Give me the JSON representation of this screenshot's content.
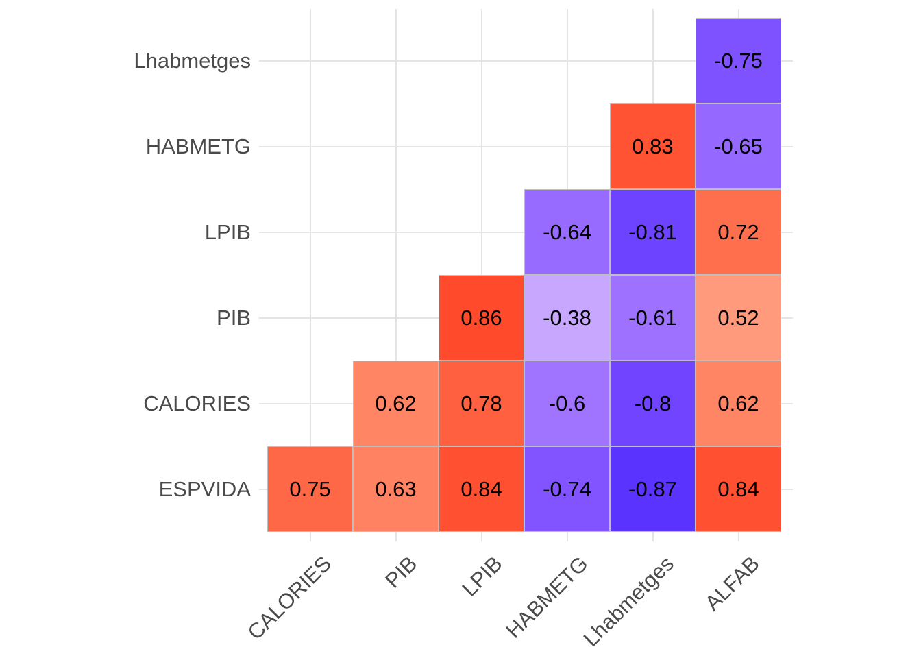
{
  "figure": {
    "background_color": "#FFFFFF",
    "title": "",
    "legend": "none"
  },
  "chart_data": {
    "type": "heatmap",
    "subtype": "correlation-matrix-lower-triangle-no-diagonal",
    "title": "",
    "xlabel": "",
    "ylabel": "",
    "x_categories": [
      "CALORIES",
      "PIB",
      "LPIB",
      "HABMETG",
      "Lhabmetges",
      "ALFAB"
    ],
    "y_categories_top_to_bottom": [
      "Lhabmetges",
      "HABMETG",
      "LPIB",
      "PIB",
      "CALORIES",
      "ESPVIDA"
    ],
    "x_tick_angle_degrees": 45,
    "rows": [
      {
        "y": "Lhabmetges",
        "cells": [
          {
            "x": "ALFAB",
            "value": -0.75,
            "label": "-0.75"
          }
        ]
      },
      {
        "y": "HABMETG",
        "cells": [
          {
            "x": "Lhabmetges",
            "value": 0.83,
            "label": "0.83"
          },
          {
            "x": "ALFAB",
            "value": -0.65,
            "label": "-0.65"
          }
        ]
      },
      {
        "y": "LPIB",
        "cells": [
          {
            "x": "HABMETG",
            "value": -0.64,
            "label": "-0.64"
          },
          {
            "x": "Lhabmetges",
            "value": -0.81,
            "label": "-0.81"
          },
          {
            "x": "ALFAB",
            "value": 0.72,
            "label": "0.72"
          }
        ]
      },
      {
        "y": "PIB",
        "cells": [
          {
            "x": "LPIB",
            "value": 0.86,
            "label": "0.86"
          },
          {
            "x": "HABMETG",
            "value": -0.38,
            "label": "-0.38"
          },
          {
            "x": "Lhabmetges",
            "value": -0.61,
            "label": "-0.61"
          },
          {
            "x": "ALFAB",
            "value": 0.52,
            "label": "0.52"
          }
        ]
      },
      {
        "y": "CALORIES",
        "cells": [
          {
            "x": "PIB",
            "value": 0.62,
            "label": "0.62"
          },
          {
            "x": "LPIB",
            "value": 0.78,
            "label": "0.78"
          },
          {
            "x": "HABMETG",
            "value": -0.6,
            "label": "-0.6"
          },
          {
            "x": "Lhabmetges",
            "value": -0.8,
            "label": "-0.8"
          },
          {
            "x": "ALFAB",
            "value": 0.62,
            "label": "0.62"
          }
        ]
      },
      {
        "y": "ESPVIDA",
        "cells": [
          {
            "x": "CALORIES",
            "value": 0.75,
            "label": "0.75"
          },
          {
            "x": "PIB",
            "value": 0.63,
            "label": "0.63"
          },
          {
            "x": "LPIB",
            "value": 0.84,
            "label": "0.84"
          },
          {
            "x": "HABMETG",
            "value": -0.74,
            "label": "-0.74"
          },
          {
            "x": "Lhabmetges",
            "value": -0.87,
            "label": "-0.87"
          },
          {
            "x": "ALFAB",
            "value": 0.84,
            "label": "0.84"
          }
        ]
      }
    ],
    "colorscale": {
      "type": "diverging",
      "low": "#0000FF",
      "mid": "#FFFFFF",
      "high": "#FF0000",
      "domain": [
        -1,
        1
      ],
      "interpolation": "lab"
    },
    "style_colors": {
      "gridline": "#E4E4E4",
      "tile_border": "#BEBEBE",
      "axis_text": "#4A4A4A",
      "value_text": "#000000"
    },
    "grid": {
      "show": true
    },
    "legend_position": "none"
  }
}
